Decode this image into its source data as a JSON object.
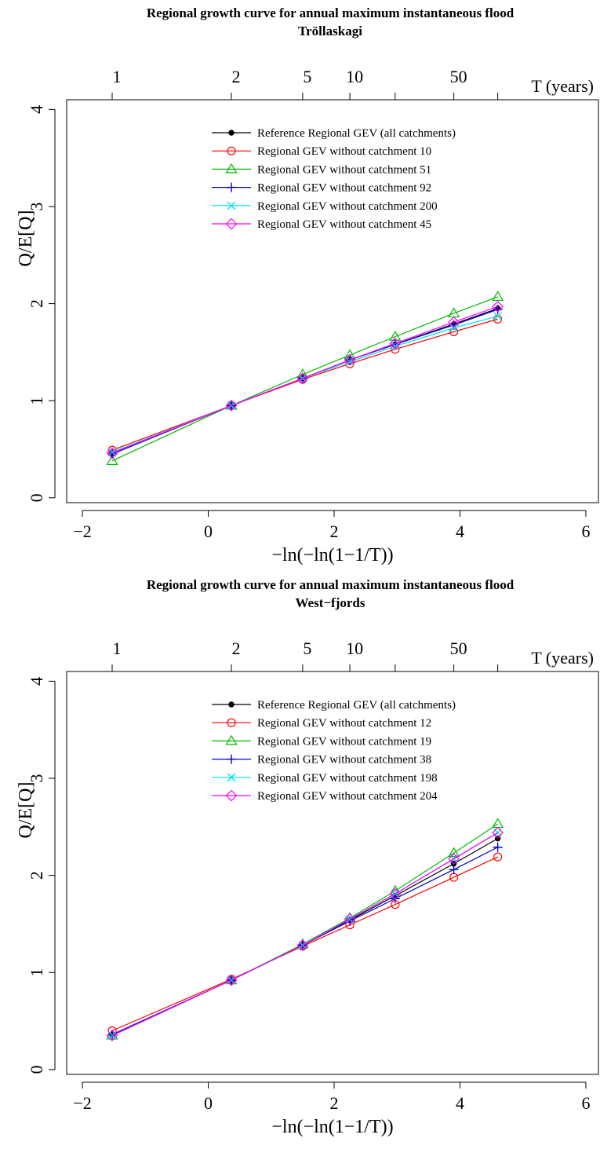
{
  "chart_data": [
    {
      "type": "line",
      "title": "Regional growth curve for annual maximum instantaneous flood",
      "subtitle": "Tröllaskagi",
      "xlabel": "−ln(−ln(1−1/T))",
      "ylabel": "Q/E[Q]",
      "top_axis_label": "T (years)",
      "xlim": [
        -2.25,
        6.2
      ],
      "ylim": [
        -0.05,
        4.1
      ],
      "x_ticks": [
        -2,
        0,
        2,
        4,
        6
      ],
      "x_tick_labels": [
        "−2",
        "0",
        "2",
        "4",
        "6"
      ],
      "y_ticks": [
        0,
        1,
        2,
        3,
        4
      ],
      "y_tick_labels": [
        "0",
        "1",
        "2",
        "3",
        "4"
      ],
      "top_ticks": [
        -1.527,
        0.367,
        1.5,
        2.25,
        2.97,
        3.902,
        4.6
      ],
      "top_tick_labels": [
        "1",
        "2",
        "5",
        "10",
        "",
        "50",
        ""
      ],
      "grid": false,
      "legend_position": "top-center",
      "x": [
        -1.527,
        0.367,
        1.5,
        2.25,
        2.97,
        3.902,
        4.6
      ],
      "series": [
        {
          "name": "Reference Regional GEV (all catchments)",
          "color": "#000000",
          "marker": "dot",
          "values": [
            0.46,
            0.95,
            1.23,
            1.42,
            1.58,
            1.79,
            1.95
          ]
        },
        {
          "name": "Regional GEV without catchment 10",
          "color": "#ff0000",
          "marker": "circle",
          "values": [
            0.49,
            0.95,
            1.22,
            1.38,
            1.53,
            1.71,
            1.84
          ]
        },
        {
          "name": "Regional GEV without catchment 51",
          "color": "#00bb00",
          "marker": "triangle",
          "values": [
            0.38,
            0.95,
            1.27,
            1.47,
            1.66,
            1.9,
            2.07
          ]
        },
        {
          "name": "Regional GEV without catchment 92",
          "color": "#0000cc",
          "marker": "plus",
          "values": [
            0.45,
            0.95,
            1.23,
            1.42,
            1.58,
            1.78,
            1.94
          ]
        },
        {
          "name": "Regional GEV without catchment 200",
          "color": "#00e5e5",
          "marker": "x",
          "values": [
            0.47,
            0.95,
            1.23,
            1.4,
            1.56,
            1.75,
            1.87
          ]
        },
        {
          "name": "Regional GEV without catchment 45",
          "color": "#ff00ff",
          "marker": "diamond",
          "values": [
            0.46,
            0.95,
            1.23,
            1.42,
            1.59,
            1.81,
            1.97
          ]
        }
      ]
    },
    {
      "type": "line",
      "title": "Regional growth curve for annual maximum instantaneous flood",
      "subtitle": "West−fjords",
      "xlabel": "−ln(−ln(1−1/T))",
      "ylabel": "Q/E[Q]",
      "top_axis_label": "T (years)",
      "xlim": [
        -2.25,
        6.2
      ],
      "ylim": [
        -0.05,
        4.1
      ],
      "x_ticks": [
        -2,
        0,
        2,
        4,
        6
      ],
      "x_tick_labels": [
        "−2",
        "0",
        "2",
        "4",
        "6"
      ],
      "y_ticks": [
        0,
        1,
        2,
        3,
        4
      ],
      "y_tick_labels": [
        "0",
        "1",
        "2",
        "3",
        "4"
      ],
      "top_ticks": [
        -1.527,
        0.367,
        1.5,
        2.25,
        2.97,
        3.902,
        4.6
      ],
      "top_tick_labels": [
        "1",
        "2",
        "5",
        "10",
        "",
        "50",
        ""
      ],
      "grid": false,
      "legend_position": "top-center",
      "x": [
        -1.527,
        0.367,
        1.5,
        2.25,
        2.97,
        3.902,
        4.6
      ],
      "series": [
        {
          "name": "Reference Regional GEV (all catchments)",
          "color": "#000000",
          "marker": "dot",
          "values": [
            0.36,
            0.92,
            1.28,
            1.54,
            1.79,
            2.12,
            2.38
          ]
        },
        {
          "name": "Regional GEV without catchment 12",
          "color": "#ff0000",
          "marker": "circle",
          "values": [
            0.4,
            0.93,
            1.27,
            1.49,
            1.7,
            1.98,
            2.19
          ]
        },
        {
          "name": "Regional GEV without catchment 19",
          "color": "#00bb00",
          "marker": "triangle",
          "values": [
            0.35,
            0.92,
            1.29,
            1.56,
            1.84,
            2.23,
            2.53
          ]
        },
        {
          "name": "Regional GEV without catchment 38",
          "color": "#0000cc",
          "marker": "plus",
          "values": [
            0.36,
            0.92,
            1.28,
            1.53,
            1.76,
            2.06,
            2.29
          ]
        },
        {
          "name": "Regional GEV without catchment 198",
          "color": "#00e5e5",
          "marker": "x",
          "values": [
            0.35,
            0.92,
            1.28,
            1.55,
            1.81,
            2.17,
            2.44
          ]
        },
        {
          "name": "Regional GEV without catchment 204",
          "color": "#ff00ff",
          "marker": "diamond",
          "values": [
            0.35,
            0.92,
            1.28,
            1.55,
            1.81,
            2.17,
            2.44
          ]
        }
      ]
    }
  ]
}
